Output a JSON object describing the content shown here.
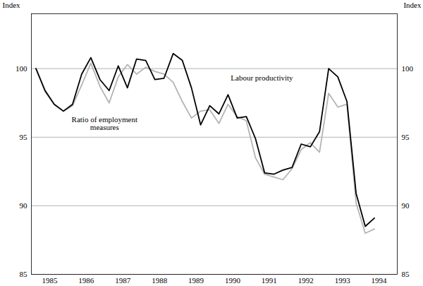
{
  "chart_data": {
    "type": "line",
    "ylabel": "Index",
    "x": [
      1985.125,
      1985.375,
      1985.625,
      1985.875,
      1986.125,
      1986.375,
      1986.625,
      1986.875,
      1987.125,
      1987.375,
      1987.625,
      1987.875,
      1988.125,
      1988.375,
      1988.625,
      1988.875,
      1989.125,
      1989.375,
      1989.625,
      1989.875,
      1990.125,
      1990.375,
      1990.625,
      1990.875,
      1991.125,
      1991.375,
      1991.625,
      1991.875,
      1992.125,
      1992.375,
      1992.625,
      1992.875,
      1993.125,
      1993.375,
      1993.625,
      1993.875,
      1994.125,
      1994.375
    ],
    "series": [
      {
        "name": "Ratio of employment measures",
        "color": "#b4b4b4",
        "values": [
          100,
          98.3,
          97.4,
          96.9,
          97.3,
          98.8,
          100.4,
          98.7,
          97.5,
          99.4,
          100.3,
          99.6,
          100.1,
          99.8,
          99.6,
          99.0,
          97.6,
          96.4,
          96.9,
          97.0,
          96.0,
          97.4,
          96.5,
          96.2,
          93.5,
          92.3,
          92.1,
          91.9,
          92.7,
          94.1,
          94.6,
          93.9,
          98.2,
          97.2,
          97.4,
          90.2,
          88.0,
          88.3
        ]
      },
      {
        "name": "Labour productivity",
        "color": "#000000",
        "values": [
          100,
          98.4,
          97.4,
          96.9,
          97.4,
          99.6,
          100.8,
          99.2,
          98.4,
          100.2,
          98.6,
          100.7,
          100.6,
          99.2,
          99.3,
          101.1,
          100.6,
          98.6,
          95.9,
          97.3,
          96.7,
          98.1,
          96.4,
          96.5,
          94.9,
          92.4,
          92.3,
          92.6,
          92.8,
          94.5,
          94.3,
          95.4,
          100,
          99.4,
          97.6,
          90.9,
          88.5,
          89.1
        ]
      }
    ],
    "annotations": [
      {
        "text": "Labour productivity",
        "x": 1991.3,
        "y": 99.3
      },
      {
        "text": "Ratio of employment\nmeasures",
        "x": 1987.0,
        "y": 96.0
      }
    ],
    "xlim": [
      1985,
      1995
    ],
    "xticks": [
      {
        "value": 1985.5,
        "label": "1985"
      },
      {
        "value": 1986.5,
        "label": "1986"
      },
      {
        "value": 1987.5,
        "label": "1987"
      },
      {
        "value": 1988.5,
        "label": "1988"
      },
      {
        "value": 1989.5,
        "label": "1989"
      },
      {
        "value": 1990.5,
        "label": "1990"
      },
      {
        "value": 1991.5,
        "label": "1991"
      },
      {
        "value": 1992.5,
        "label": "1992"
      },
      {
        "value": 1993.5,
        "label": "1993"
      },
      {
        "value": 1994.5,
        "label": "1994"
      }
    ],
    "ylim": [
      85,
      104
    ],
    "yticks": [
      85,
      90,
      95,
      100
    ],
    "grid": true
  }
}
